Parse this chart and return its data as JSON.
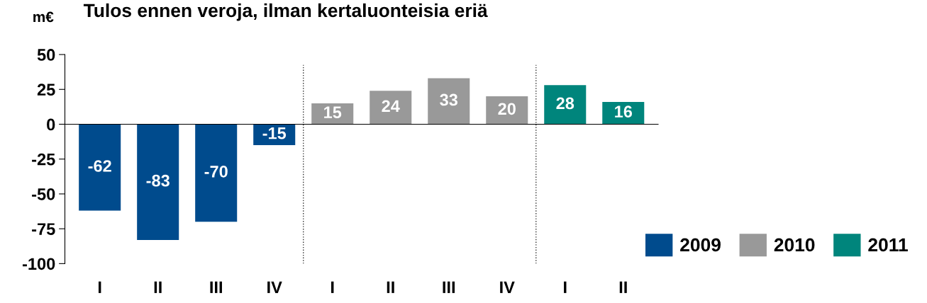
{
  "chart_data": {
    "type": "bar",
    "title": "Tulos ennen veroja, ilman kertaluonteisia eriä",
    "ylabel": "m€",
    "categories": [
      "I",
      "II",
      "III",
      "IV",
      "I",
      "II",
      "III",
      "IV",
      "I",
      "II"
    ],
    "series": [
      {
        "name": "2009",
        "color": "#004b8d",
        "values": [
          -62,
          -83,
          -70,
          -15,
          null,
          null,
          null,
          null,
          null,
          null
        ]
      },
      {
        "name": "2010",
        "color": "#999999",
        "values": [
          null,
          null,
          null,
          null,
          15,
          24,
          33,
          20,
          null,
          null
        ]
      },
      {
        "name": "2011",
        "color": "#00857c",
        "values": [
          null,
          null,
          null,
          null,
          null,
          null,
          null,
          null,
          28,
          16
        ]
      }
    ],
    "ylim": [
      -100,
      50
    ],
    "yticks": [
      -100,
      -75,
      -50,
      -25,
      0,
      25,
      50
    ],
    "data_labels": true,
    "grid": false,
    "legend": "bottom right"
  }
}
